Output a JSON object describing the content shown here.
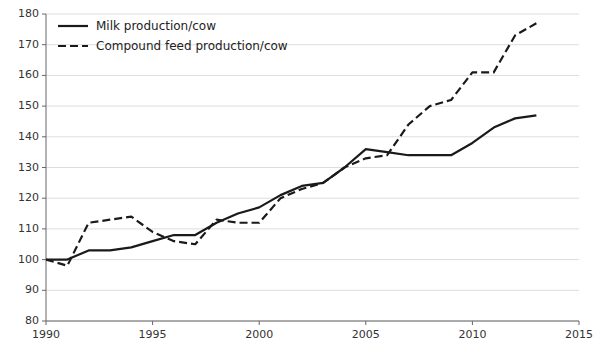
{
  "chart_data": {
    "type": "line",
    "x": [
      1990,
      1991,
      1992,
      1993,
      1994,
      1995,
      1996,
      1997,
      1998,
      1999,
      2000,
      2001,
      2002,
      2003,
      2004,
      2005,
      2006,
      2007,
      2008,
      2009,
      2010,
      2011,
      2012,
      2013
    ],
    "series": [
      {
        "name": "Milk production/cow",
        "color": "#1a1a1a",
        "line_style": "solid",
        "values": [
          100,
          100,
          103,
          103,
          104,
          106,
          108,
          108,
          112,
          115,
          117,
          121,
          124,
          125,
          130,
          136,
          135,
          134,
          134,
          134,
          138,
          143,
          146,
          147
        ]
      },
      {
        "name": "Compound feed production/cow",
        "color": "#1a1a1a",
        "line_style": "dashed",
        "values": [
          100,
          98,
          112,
          113,
          114,
          109,
          106,
          105,
          113,
          112,
          112,
          120,
          123,
          125,
          130,
          133,
          134,
          144,
          150,
          152,
          161,
          161,
          173,
          177
        ]
      }
    ],
    "xlim": [
      1990,
      2015
    ],
    "ylim": [
      80,
      180
    ],
    "xticks": [
      1990,
      1995,
      2000,
      2005,
      2010,
      2015
    ],
    "yticks": [
      80,
      90,
      100,
      110,
      120,
      130,
      140,
      150,
      160,
      170,
      180
    ],
    "grid": true,
    "legend": "upper left"
  }
}
